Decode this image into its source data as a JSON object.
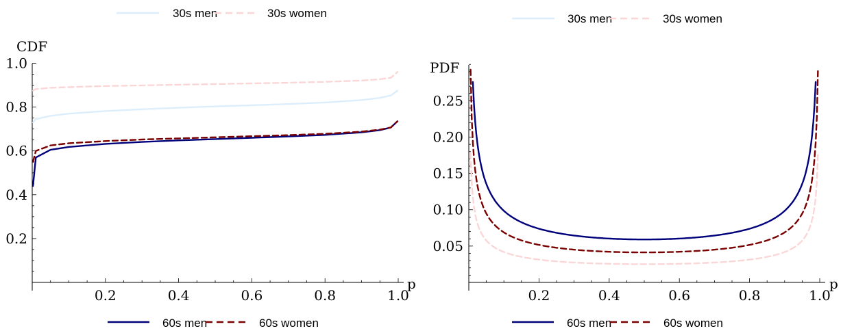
{
  "chart_data": [
    {
      "type": "line",
      "ylabel": "CDF",
      "xlabel": "p",
      "xlim": [
        0,
        1
      ],
      "ylim": [
        0,
        1
      ],
      "xticks": [
        "0.2",
        "0.4",
        "0.6",
        "0.8",
        "1.0"
      ],
      "yticks": [
        "0.2",
        "0.4",
        "0.6",
        "0.8",
        "1.0"
      ],
      "grid": false,
      "legend_top": [
        "30s men",
        "30s women"
      ],
      "legend_bottom": [
        "60s men",
        "60s women"
      ],
      "x": [
        0.002,
        0.01,
        0.05,
        0.1,
        0.2,
        0.3,
        0.4,
        0.5,
        0.6,
        0.7,
        0.8,
        0.9,
        0.95,
        0.98,
        0.998
      ],
      "series": [
        {
          "name": "30s men",
          "color": "#dceefb",
          "dash": "solid",
          "values": [
            0.73,
            0.745,
            0.76,
            0.77,
            0.782,
            0.79,
            0.797,
            0.803,
            0.808,
            0.814,
            0.821,
            0.832,
            0.842,
            0.853,
            0.875
          ]
        },
        {
          "name": "30s women",
          "color": "#fbd6d6",
          "dash": "dashed",
          "values": [
            0.875,
            0.882,
            0.888,
            0.891,
            0.896,
            0.899,
            0.902,
            0.905,
            0.908,
            0.911,
            0.915,
            0.921,
            0.927,
            0.934,
            0.96
          ]
        },
        {
          "name": "60s men",
          "color": "#00007a",
          "dash": "solid",
          "values": [
            0.44,
            0.57,
            0.605,
            0.618,
            0.632,
            0.641,
            0.648,
            0.654,
            0.66,
            0.666,
            0.673,
            0.685,
            0.695,
            0.707,
            0.735
          ]
        },
        {
          "name": "60s women",
          "color": "#7a0000",
          "dash": "dashed",
          "values": [
            0.55,
            0.6,
            0.625,
            0.635,
            0.645,
            0.652,
            0.657,
            0.662,
            0.667,
            0.672,
            0.678,
            0.688,
            0.697,
            0.707,
            0.735
          ]
        }
      ]
    },
    {
      "type": "line",
      "ylabel": "PDF",
      "xlabel": "p",
      "xlim": [
        0,
        1
      ],
      "ylim": [
        0,
        0.3
      ],
      "xticks": [
        "0.2",
        "0.4",
        "0.6",
        "0.8",
        "1.0"
      ],
      "yticks": [
        "0.05",
        "0.10",
        "0.15",
        "0.20",
        "0.25"
      ],
      "grid": false,
      "legend_top": [
        "30s men",
        "30s women"
      ],
      "legend_bottom": [
        "60s men",
        "60s women"
      ],
      "series": [
        {
          "name": "30s men",
          "color": "#dceefb",
          "dash": "solid",
          "k": 0.0591
        },
        {
          "name": "30s women",
          "color": "#fbd6d6",
          "dash": "dashed",
          "k": 0.0251
        },
        {
          "name": "60s men",
          "color": "#00007a",
          "dash": "solid",
          "k": 0.0591
        },
        {
          "name": "60s women",
          "color": "#7a0000",
          "dash": "dashed",
          "k": 0.0413
        }
      ]
    }
  ]
}
